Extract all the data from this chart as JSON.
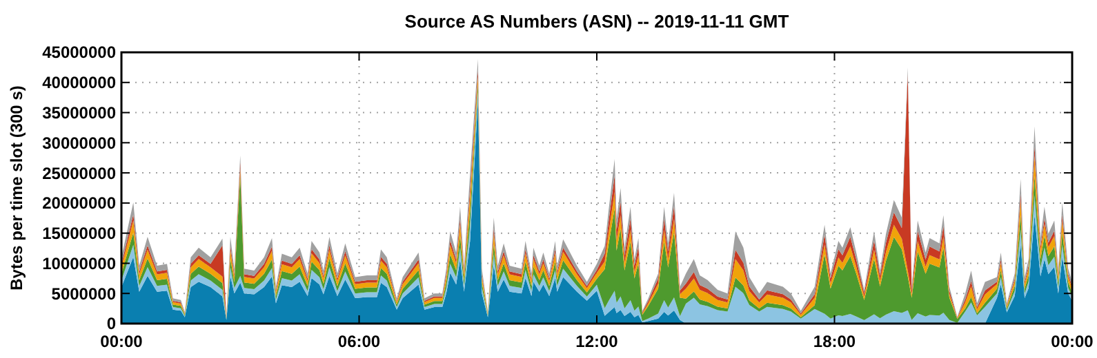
{
  "chart_data": {
    "type": "area",
    "stacked": true,
    "title": "Source AS Numbers (ASN) -- 2019-11-11 GMT",
    "ylabel": "Bytes per time slot (300 s)",
    "grid": true,
    "xlim": [
      0,
      24
    ],
    "xticks": [
      {
        "value": 0,
        "label": "00:00"
      },
      {
        "value": 6,
        "label": "06:00"
      },
      {
        "value": 12,
        "label": "12:00"
      },
      {
        "value": 18,
        "label": "18:00"
      },
      {
        "value": 24,
        "label": "00:00"
      }
    ],
    "ylim": [
      0,
      45000000
    ],
    "yticks": [
      0,
      5000000,
      10000000,
      15000000,
      20000000,
      25000000,
      30000000,
      35000000,
      40000000,
      45000000
    ],
    "x": [
      0,
      0.3,
      0.45,
      0.66,
      0.9,
      1.15,
      1.3,
      1.5,
      1.6,
      1.75,
      1.95,
      2.25,
      2.55,
      2.65,
      2.75,
      2.85,
      3,
      3.1,
      3.35,
      3.6,
      3.8,
      3.9,
      4.05,
      4.3,
      4.5,
      4.7,
      4.8,
      5,
      5.1,
      5.25,
      5.45,
      5.65,
      5.9,
      6.2,
      6.45,
      6.55,
      6.7,
      6.95,
      7.1,
      7.5,
      7.65,
      7.9,
      8.1,
      8.2,
      8.3,
      8.45,
      8.55,
      8.65,
      8.8,
      9,
      9.1,
      9.25,
      9.4,
      9.5,
      9.65,
      9.8,
      10.1,
      10.2,
      10.35,
      10.4,
      10.55,
      10.65,
      10.8,
      10.95,
      11,
      11.15,
      11.5,
      11.75,
      12,
      12.2,
      12.3,
      12.45,
      12.5,
      12.6,
      12.7,
      12.85,
      12.95,
      13.05,
      13.15,
      13.3,
      13.55,
      13.7,
      13.8,
      13.95,
      14.1,
      14.25,
      14.45,
      14.6,
      14.8,
      15.05,
      15.3,
      15.5,
      15.7,
      15.85,
      16.1,
      16.3,
      16.7,
      16.9,
      17.15,
      17.5,
      17.75,
      17.9,
      18.1,
      18.2,
      18.4,
      18.55,
      18.75,
      19,
      19.15,
      19.3,
      19.5,
      19.7,
      19.85,
      19.95,
      20.1,
      20.3,
      20.4,
      20.65,
      20.75,
      20.9,
      21.1,
      21.3,
      21.45,
      21.6,
      21.8,
      22.1,
      22.2,
      22.35,
      22.55,
      22.7,
      22.8,
      22.9,
      23.05,
      23.2,
      23.3,
      23.4,
      23.55,
      23.65,
      23.75,
      23.9,
      24
    ],
    "series": [
      {
        "color": "#0a7fb0",
        "values": [
          6050000,
          11060000,
          5280000,
          7920000,
          5280000,
          5450000,
          2310000,
          2150000,
          1050000,
          6050000,
          6930000,
          6050000,
          4500000,
          610000,
          7920000,
          5010000,
          6800000,
          5010000,
          4840000,
          6050000,
          7810000,
          3360000,
          6380000,
          6050000,
          6930000,
          4570000,
          7540000,
          6490000,
          4840000,
          7920000,
          4570000,
          7320000,
          4240000,
          4400000,
          4400000,
          6770000,
          6050000,
          2310000,
          4240000,
          6490000,
          2310000,
          2750000,
          2750000,
          5010000,
          8420000,
          6490000,
          10670000,
          5280000,
          13640000,
          37000000,
          5010000,
          1050000,
          9680000,
          5280000,
          7320000,
          5280000,
          5010000,
          7540000,
          4570000,
          6930000,
          5280000,
          6490000,
          4570000,
          7540000,
          5280000,
          7700000,
          5280000,
          3800000,
          5450000,
          1290000,
          1890000,
          2730000,
          1730000,
          2250000,
          1260000,
          1940000,
          1070000,
          1420000,
          210000,
          420000,
          830000,
          1940000,
          1330000,
          2170000,
          610000,
          0,
          0,
          0,
          0,
          0,
          0,
          0,
          0,
          0,
          0,
          0,
          0,
          0,
          0,
          0,
          0,
          0,
          0,
          0,
          0,
          0,
          0,
          0,
          0,
          0,
          0,
          0,
          0,
          0,
          0,
          0,
          0,
          0,
          0,
          0,
          0,
          0,
          0,
          0,
          0,
          4240000,
          6490000,
          1870000,
          4570000,
          13200000,
          4240000,
          5890000,
          17990000,
          7810000,
          10670000,
          8200000,
          9410000,
          5010000,
          11060000,
          5010000,
          3800000
        ]
      },
      {
        "color": "#8cc4e2",
        "values": [
          1100000,
          2010000,
          960000,
          1440000,
          960000,
          990000,
          420000,
          390000,
          190000,
          1100000,
          1260000,
          1100000,
          1100000,
          110000,
          1440000,
          910000,
          1100000,
          910000,
          880000,
          1100000,
          1420000,
          610000,
          1160000,
          1100000,
          1260000,
          830000,
          1370000,
          1180000,
          880000,
          1440000,
          830000,
          1330000,
          770000,
          800000,
          800000,
          1230000,
          1100000,
          420000,
          770000,
          1180000,
          420000,
          500000,
          500000,
          910000,
          1530000,
          1180000,
          1940000,
          960000,
          2480000,
          1700000,
          910000,
          190000,
          1760000,
          960000,
          1330000,
          960000,
          910000,
          1370000,
          830000,
          1260000,
          960000,
          1180000,
          830000,
          1370000,
          960000,
          1400000,
          960000,
          690000,
          990000,
          1290000,
          1890000,
          2730000,
          1730000,
          2250000,
          1260000,
          1940000,
          1070000,
          1420000,
          210000,
          420000,
          830000,
          1940000,
          1330000,
          2170000,
          610000,
          3320000,
          4280000,
          3200000,
          2880000,
          2240000,
          2000000,
          6120000,
          5040000,
          3080000,
          2000000,
          2760000,
          2440000,
          2000000,
          840000,
          2440000,
          1640000,
          830000,
          1370000,
          1260000,
          1600000,
          1180000,
          560000,
          1530000,
          880000,
          1490000,
          2050000,
          1760000,
          2200000,
          610000,
          1710000,
          1180000,
          1420000,
          1330000,
          1800000,
          610000,
          110000,
          2000000,
          3520000,
          1360000,
          2760000,
          770000,
          1180000,
          340000,
          830000,
          2400000,
          770000,
          1070000,
          3270000,
          1420000,
          1940000,
          1490000,
          1710000,
          910000,
          2010000,
          910000,
          690000
        ]
      },
      {
        "color": "#4e9a2e",
        "values": [
          1100000,
          2010000,
          960000,
          1440000,
          960000,
          990000,
          420000,
          390000,
          190000,
          1100000,
          1260000,
          1100000,
          1100000,
          110000,
          1440000,
          910000,
          16700000,
          910000,
          880000,
          1100000,
          1420000,
          610000,
          1160000,
          1100000,
          1260000,
          830000,
          1370000,
          1180000,
          880000,
          1440000,
          830000,
          1330000,
          770000,
          800000,
          800000,
          1230000,
          1100000,
          420000,
          770000,
          1180000,
          420000,
          500000,
          500000,
          910000,
          1530000,
          1180000,
          1940000,
          960000,
          2480000,
          1100000,
          910000,
          190000,
          1760000,
          960000,
          1330000,
          960000,
          910000,
          1370000,
          830000,
          1260000,
          960000,
          1180000,
          830000,
          1370000,
          960000,
          1400000,
          960000,
          690000,
          990000,
          6450000,
          9450000,
          13650000,
          8650000,
          11250000,
          6300000,
          9700000,
          5350000,
          7100000,
          1050000,
          2100000,
          4150000,
          9700000,
          6650000,
          10850000,
          3050000,
          830000,
          1070000,
          800000,
          720000,
          560000,
          500000,
          1530000,
          1260000,
          770000,
          500000,
          690000,
          610000,
          500000,
          210000,
          610000,
          9840000,
          4980000,
          8220000,
          7560000,
          9600000,
          7080000,
          3360000,
          9180000,
          5280000,
          8940000,
          12300000,
          10560000,
          5600000,
          3660000,
          10260000,
          7080000,
          8520000,
          7980000,
          10800000,
          3660000,
          660000,
          500000,
          880000,
          340000,
          690000,
          770000,
          1180000,
          340000,
          830000,
          2400000,
          770000,
          1070000,
          3270000,
          1420000,
          1940000,
          1490000,
          1710000,
          910000,
          2010000,
          910000,
          690000
        ]
      },
      {
        "color": "#f0a30a",
        "values": [
          1100000,
          2010000,
          960000,
          1440000,
          960000,
          990000,
          420000,
          390000,
          190000,
          1100000,
          1260000,
          1100000,
          1100000,
          110000,
          1440000,
          910000,
          1100000,
          910000,
          880000,
          1100000,
          1420000,
          610000,
          1160000,
          1100000,
          1260000,
          830000,
          1370000,
          1180000,
          880000,
          1440000,
          830000,
          1330000,
          770000,
          800000,
          800000,
          1230000,
          1100000,
          420000,
          770000,
          1180000,
          420000,
          500000,
          500000,
          910000,
          1530000,
          1180000,
          1940000,
          960000,
          2480000,
          1300000,
          910000,
          190000,
          1760000,
          960000,
          1330000,
          960000,
          910000,
          1370000,
          830000,
          1260000,
          960000,
          1180000,
          830000,
          1370000,
          960000,
          1400000,
          960000,
          690000,
          990000,
          1290000,
          1890000,
          2730000,
          1730000,
          2250000,
          1260000,
          1940000,
          1070000,
          1420000,
          210000,
          420000,
          830000,
          1940000,
          1330000,
          2170000,
          610000,
          1660000,
          2140000,
          1600000,
          1440000,
          1120000,
          1000000,
          3060000,
          2520000,
          1540000,
          1000000,
          1380000,
          1220000,
          1000000,
          420000,
          1220000,
          1640000,
          830000,
          1370000,
          1260000,
          1600000,
          1180000,
          560000,
          1530000,
          880000,
          1490000,
          2050000,
          1760000,
          1000000,
          610000,
          1710000,
          1180000,
          1420000,
          1330000,
          1800000,
          610000,
          110000,
          1000000,
          1760000,
          680000,
          1380000,
          770000,
          1180000,
          340000,
          830000,
          2400000,
          770000,
          1070000,
          3270000,
          1420000,
          1940000,
          1490000,
          1710000,
          910000,
          2010000,
          910000,
          690000
        ]
      },
      {
        "color": "#c83a23",
        "values": [
          550000,
          1010000,
          480000,
          720000,
          480000,
          500000,
          210000,
          200000,
          100000,
          550000,
          630000,
          550000,
          5200000,
          60000,
          720000,
          460000,
          1100000,
          460000,
          440000,
          550000,
          710000,
          310000,
          580000,
          550000,
          630000,
          420000,
          690000,
          590000,
          440000,
          720000,
          420000,
          670000,
          390000,
          400000,
          400000,
          620000,
          550000,
          210000,
          390000,
          590000,
          210000,
          250000,
          250000,
          460000,
          770000,
          590000,
          970000,
          480000,
          1240000,
          1100000,
          460000,
          100000,
          880000,
          480000,
          670000,
          480000,
          460000,
          690000,
          420000,
          630000,
          480000,
          590000,
          420000,
          690000,
          480000,
          700000,
          480000,
          350000,
          500000,
          1290000,
          1890000,
          2730000,
          1730000,
          2250000,
          1260000,
          1940000,
          1070000,
          1420000,
          210000,
          420000,
          830000,
          1940000,
          1330000,
          2170000,
          610000,
          830000,
          1070000,
          800000,
          720000,
          560000,
          500000,
          1530000,
          1260000,
          770000,
          500000,
          690000,
          610000,
          500000,
          210000,
          610000,
          1640000,
          830000,
          1370000,
          1260000,
          1600000,
          1180000,
          560000,
          1530000,
          880000,
          1490000,
          2050000,
          1760000,
          32600000,
          610000,
          1710000,
          1180000,
          1420000,
          1330000,
          1800000,
          610000,
          110000,
          500000,
          880000,
          340000,
          690000,
          390000,
          590000,
          170000,
          420000,
          1200000,
          390000,
          540000,
          1640000,
          710000,
          970000,
          750000,
          860000,
          460000,
          1010000,
          460000,
          350000
        ]
      },
      {
        "color": "#a0a0a0",
        "values": [
          1100000,
          2010000,
          960000,
          1440000,
          960000,
          990000,
          420000,
          390000,
          190000,
          1100000,
          1260000,
          1100000,
          1100000,
          110000,
          1440000,
          910000,
          1100000,
          910000,
          880000,
          1100000,
          1420000,
          610000,
          1160000,
          1100000,
          1260000,
          830000,
          1370000,
          1180000,
          880000,
          1440000,
          830000,
          1330000,
          770000,
          800000,
          800000,
          1230000,
          1100000,
          420000,
          770000,
          1180000,
          420000,
          500000,
          500000,
          910000,
          1530000,
          1180000,
          1940000,
          960000,
          2480000,
          1700000,
          910000,
          190000,
          1760000,
          960000,
          1330000,
          960000,
          910000,
          1370000,
          830000,
          1260000,
          960000,
          1180000,
          830000,
          1370000,
          960000,
          1400000,
          960000,
          690000,
          990000,
          1290000,
          1890000,
          2730000,
          1730000,
          2250000,
          1260000,
          1940000,
          1070000,
          1420000,
          210000,
          420000,
          830000,
          1940000,
          1330000,
          2170000,
          610000,
          1660000,
          2140000,
          1600000,
          1440000,
          1120000,
          1000000,
          3060000,
          2520000,
          1540000,
          1000000,
          1380000,
          1220000,
          1000000,
          420000,
          1220000,
          1640000,
          830000,
          1370000,
          1260000,
          1600000,
          1180000,
          560000,
          1530000,
          880000,
          1490000,
          2050000,
          1760000,
          1100000,
          610000,
          1710000,
          1180000,
          1420000,
          1330000,
          1800000,
          610000,
          110000,
          1000000,
          1760000,
          680000,
          1380000,
          770000,
          1180000,
          340000,
          830000,
          2400000,
          770000,
          1070000,
          3270000,
          1420000,
          1940000,
          1490000,
          1710000,
          910000,
          2010000,
          910000,
          690000
        ]
      }
    ]
  }
}
